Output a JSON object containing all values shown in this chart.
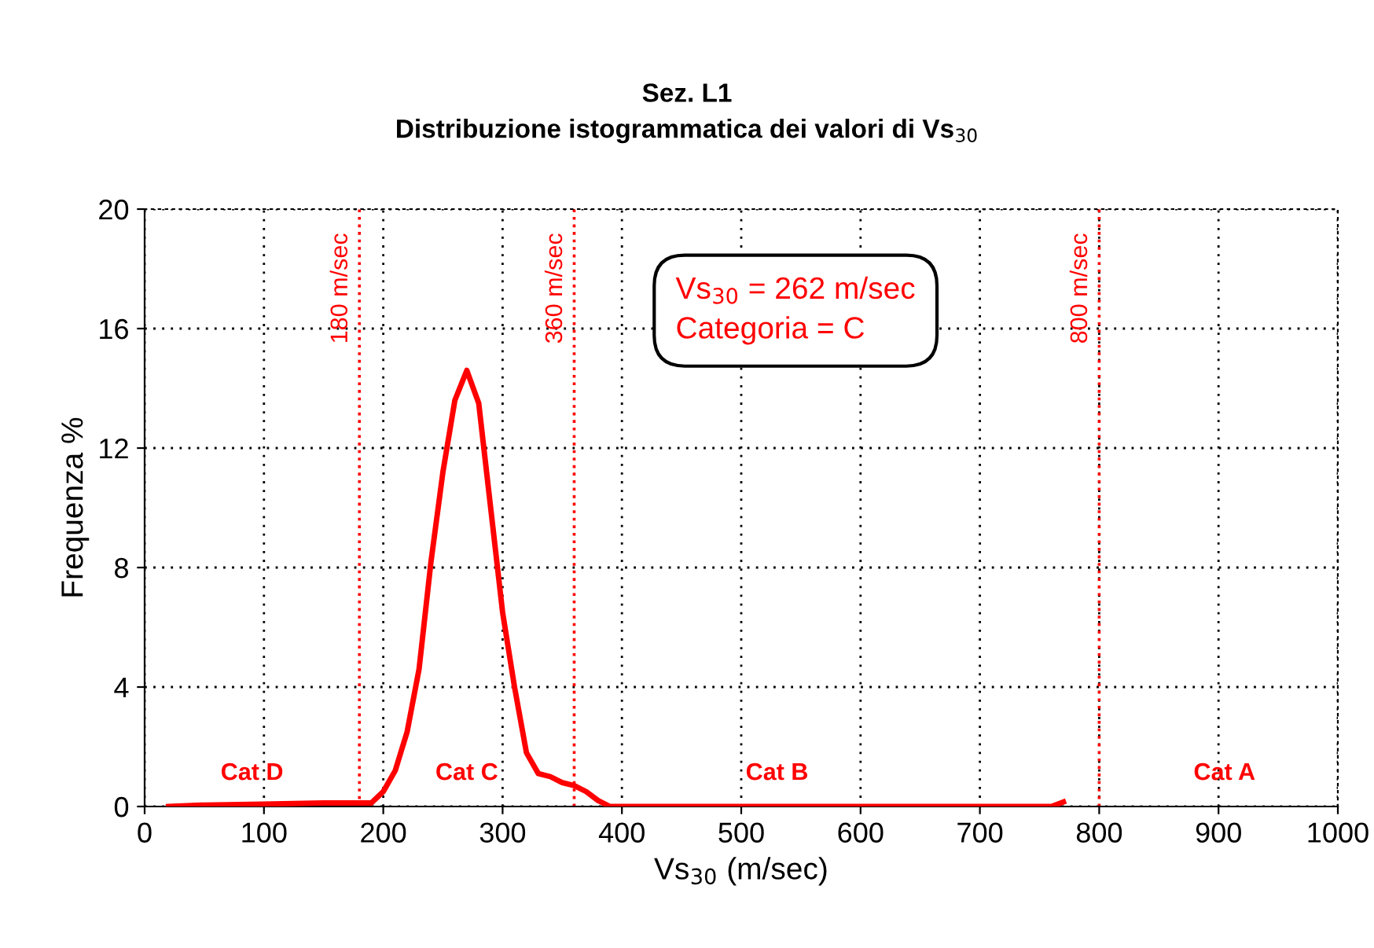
{
  "chart_data": {
    "type": "line",
    "title": "Sez. L1",
    "subtitle": "Distribuzione istogrammatica dei valori di Vs$_{30}$",
    "xlabel": "Vs$_{30}$ (m/sec)",
    "ylabel": "Frequenza %",
    "x": [
      20,
      50,
      100,
      150,
      180,
      190,
      200,
      210,
      220,
      230,
      240,
      250,
      260,
      270,
      280,
      290,
      300,
      310,
      320,
      330,
      340,
      350,
      360,
      370,
      380,
      390,
      760,
      770
    ],
    "series": [
      {
        "color": "#ff0000",
        "values": [
          0,
          0.05,
          0.08,
          0.12,
          0.12,
          0.12,
          0.5,
          1.2,
          2.5,
          4.6,
          8.2,
          11.2,
          13.6,
          14.6,
          13.5,
          10,
          6.5,
          4,
          1.8,
          1.1,
          1.0,
          0.8,
          0.7,
          0.5,
          0.2,
          0,
          0,
          0.15
        ]
      }
    ],
    "xlim": [
      0,
      1000
    ],
    "xticks": [
      0,
      100,
      200,
      300,
      400,
      500,
      600,
      700,
      800,
      900,
      1000
    ],
    "ylim": [
      0,
      20
    ],
    "yticks": [
      0,
      4,
      8,
      12,
      16,
      20
    ],
    "grid": true,
    "marker": "none",
    "line_style": "solid",
    "legend": false,
    "ref_lines": [
      {
        "axis": "x",
        "value": 180,
        "label": "180 m/sec",
        "color": "#ff0000",
        "line_style": "dotted"
      },
      {
        "axis": "x",
        "value": 360,
        "label": "360 m/sec",
        "color": "#ff0000",
        "line_style": "dotted"
      },
      {
        "axis": "x",
        "value": 800,
        "label": "800 m/sec",
        "color": "#ff0000",
        "line_style": "dotted"
      }
    ],
    "annotations": [
      "Cat D",
      "Cat C",
      "Cat B",
      "Cat A",
      "Vs$_{30}$ = 262 m/sec\nCategoria = C"
    ]
  }
}
